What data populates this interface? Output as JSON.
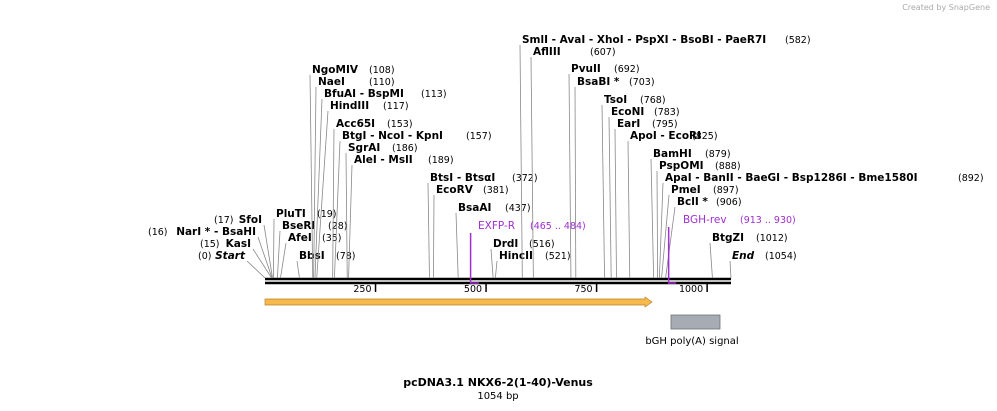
{
  "header": {
    "credit": "Created by SnapGene"
  },
  "map": {
    "title": "pcDNA3.1 NKX6-2(1-40)-Venus",
    "length": "1054 bp",
    "ruler_ticks": [
      250,
      500,
      750,
      1000
    ],
    "sites": [
      {
        "name": "Start",
        "pos": {
          "value": 0,
          "label": "(0)"
        },
        "italic": true
      },
      {
        "name": "KasI",
        "pos": {
          "value": 15,
          "label": "(15)"
        }
      },
      {
        "name": "NarI * - BsaHI",
        "pos": {
          "value": 16,
          "label": "(16)"
        }
      },
      {
        "name": "SfoI",
        "pos": {
          "value": 17,
          "label": "(17)"
        }
      },
      {
        "name": "PluTI",
        "pos": {
          "value": 19,
          "label": "(19)"
        }
      },
      {
        "name": "BseRI",
        "pos": {
          "value": 28,
          "label": "(28)"
        }
      },
      {
        "name": "AfeI",
        "pos": {
          "value": 35,
          "label": "(35)"
        }
      },
      {
        "name": "BbsI",
        "pos": {
          "value": 78,
          "label": "(78)"
        }
      },
      {
        "name": "NgoMIV",
        "pos": {
          "value": 108,
          "label": "(108)"
        }
      },
      {
        "name": "NaeI",
        "pos": {
          "value": 110,
          "label": "(110)"
        }
      },
      {
        "name": "BfuAI  - BspMI",
        "pos": {
          "value": 113,
          "label": "(113)"
        }
      },
      {
        "name": "HindIII",
        "pos": {
          "value": 117,
          "label": "(117)"
        }
      },
      {
        "name": "Acc65I",
        "pos": {
          "value": 153,
          "label": "(153)"
        }
      },
      {
        "name": "BtgI  - NcoI  - KpnI",
        "pos": {
          "value": 157,
          "label": "(157)"
        }
      },
      {
        "name": "SgrAI",
        "pos": {
          "value": 186,
          "label": "(186)"
        }
      },
      {
        "name": "AleI  - MslI",
        "pos": {
          "value": 189,
          "label": "(189)"
        }
      },
      {
        "name": "BtsI  - BtsαI",
        "pos": {
          "value": 372,
          "label": "(372)"
        }
      },
      {
        "name": "EcoRV",
        "pos": {
          "value": 381,
          "label": "(381)"
        }
      },
      {
        "name": "BsaAI",
        "pos": {
          "value": 437,
          "label": "(437)"
        }
      },
      {
        "name": "DrdI",
        "pos": {
          "value": 516,
          "label": "(516)"
        }
      },
      {
        "name": "HincII",
        "pos": {
          "value": 521,
          "label": "(521)"
        }
      },
      {
        "name": "SmlI  - AvaI  - XhoI  - PspXI  - BsoBI  - PaeR7I",
        "pos": {
          "value": 582,
          "label": "(582)"
        }
      },
      {
        "name": "AflIII",
        "pos": {
          "value": 607,
          "label": "(607)"
        }
      },
      {
        "name": "PvuII",
        "pos": {
          "value": 692,
          "label": "(692)"
        }
      },
      {
        "name": "BsaBI *",
        "pos": {
          "value": 703,
          "label": "(703)"
        }
      },
      {
        "name": "TsoI",
        "pos": {
          "value": 768,
          "label": "(768)"
        }
      },
      {
        "name": "EcoNI",
        "pos": {
          "value": 783,
          "label": "(783)"
        }
      },
      {
        "name": "EarI",
        "pos": {
          "value": 795,
          "label": "(795)"
        }
      },
      {
        "name": "ApoI  - EcoRI",
        "pos": {
          "value": 825,
          "label": "(825)"
        }
      },
      {
        "name": "BamHI",
        "pos": {
          "value": 879,
          "label": "(879)"
        }
      },
      {
        "name": "PspOMI",
        "pos": {
          "value": 888,
          "label": "(888)"
        }
      },
      {
        "name": "ApaI  - BanII  - BaeGI  - Bsp1286I  - Bme1580I",
        "pos": {
          "value": 892,
          "label": "(892)"
        }
      },
      {
        "name": "PmeI",
        "pos": {
          "value": 897,
          "label": "(897)"
        }
      },
      {
        "name": "BclI *",
        "pos": {
          "value": 906,
          "label": "(906)"
        }
      },
      {
        "name": "BtgZI",
        "pos": {
          "value": 1012,
          "label": "(1012)"
        }
      },
      {
        "name": "End",
        "pos": {
          "value": 1054,
          "label": "(1054)"
        },
        "italic": true
      }
    ],
    "primers": [
      {
        "name": "EXFP-R",
        "range": {
          "start": 465,
          "end": 484,
          "label": "(465 .. 484)"
        }
      },
      {
        "name": "BGH-rev",
        "range": {
          "start": 913,
          "end": 930,
          "label": "(913 .. 930)"
        }
      }
    ],
    "features": [
      {
        "name": "bGH poly(A) signal"
      }
    ]
  }
}
